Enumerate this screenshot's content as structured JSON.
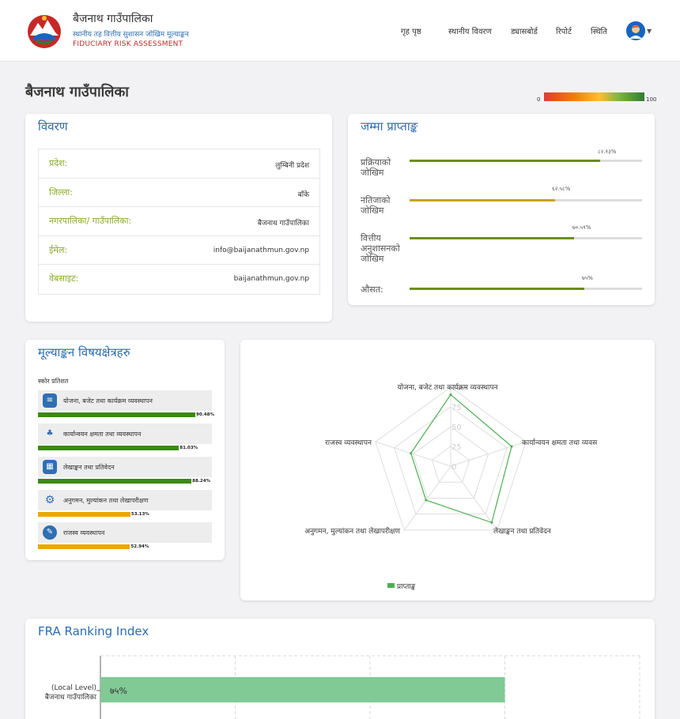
{
  "header": {
    "title": "बैजनाथ गाउँपालिका",
    "subtitle": "स्थानीय तह वित्तीय सुशासन जोखिम मूल्याङ्कन",
    "subtitle_en": "FIDUCIARY RISK ASSESSMENT",
    "nav": [
      "गृह पृष्ठ",
      "स्थानीय विवरण",
      "ड्यासबोर्ड",
      "रिपोर्ट",
      "स्थिति"
    ],
    "avatar_icon": "user-avatar-icon"
  },
  "page_title": "बैजनाथ गाउँपालिका",
  "scale": {
    "min": "0",
    "max": "100"
  },
  "details": {
    "title": "विवरण",
    "rows": [
      {
        "label": "प्रदेश:",
        "value": "लुम्बिनी प्रदेश"
      },
      {
        "label": "जिल्ला:",
        "value": "बाँके"
      },
      {
        "label": "नगरपालिका/ गाउँपालिका:",
        "value": "बैजनाथ गाउँपालिका"
      },
      {
        "label": "ईमेल:",
        "value": "info@baijanathmun.gov.np"
      },
      {
        "label": "वेबसाइट:",
        "value": "baijanathmun.gov.np"
      }
    ]
  },
  "scores": {
    "title": "जम्मा प्राप्ताङ्क",
    "items": [
      {
        "label": "प्रक्रियाको जोखिम",
        "value": 82.13,
        "display": "८२.१३%",
        "color": "#6b8e1a"
      },
      {
        "label": "नतिजाको जोखिम",
        "value": 62.58,
        "display": "६२.५८%",
        "color": "#c8a415"
      },
      {
        "label": "वित्तीय अनुशासनको जोखिम",
        "value": 70.59,
        "display": "७०.५९%",
        "color": "#6b8e1a"
      },
      {
        "label": "औसत:",
        "value": 75,
        "display": "७५%",
        "color": "#6b8e1a"
      }
    ]
  },
  "areas": {
    "title": "मूल्याङ्कन विषयक्षेत्रहरु",
    "subtitle": "स्कोर प्रतिशत",
    "items": [
      {
        "label": "योजना, बजेट तथा कार्यक्रम व्यवस्थापन",
        "value": 90.48,
        "display": "90.48%",
        "color": "#3a8a12",
        "icon": "document-list-icon"
      },
      {
        "label": "कार्यान्वयन क्षमता तथा व्यवस्थापन",
        "value": 81.03,
        "display": "81.03%",
        "color": "#3a8a12",
        "icon": "org-chart-icon"
      },
      {
        "label": "लेखाङ्कन तथा प्रतिवेदन",
        "value": 88.24,
        "display": "88.24%",
        "color": "#3a8a12",
        "icon": "calendar-icon"
      },
      {
        "label": "अनुगमन, मुल्यांकन तथा लेखापरीक्षण",
        "value": 53.13,
        "display": "53.13%",
        "color": "#f0a500",
        "icon": "gear-dollar-icon"
      },
      {
        "label": "राजस्व व्यवस्थापन",
        "value": 52.94,
        "display": "52.94%",
        "color": "#f0a500",
        "icon": "wrench-icon"
      }
    ]
  },
  "chart_data": {
    "type": "radar",
    "categories": [
      "योजना, बजेट तथा कार्यक्रम व्यवस्थापन",
      "कार्यान्वयन क्षमता तथा व्यवस्थापन",
      "लेखाङ्कन तथा प्रतिवेदन",
      "अनुगमन, मुल्यांकन तथा लेखापरीक्षण",
      "राजस्व व्यवस्थापन"
    ],
    "axis_labels": [
      "योजना, बजेट तथा कार्यक्रम व्यवस्थापन",
      "कार्यान्वयन क्षमता तथा व्यवस",
      "लेखाङ्कन तथा प्रतिवेदन",
      "अनुगमन, मुल्यांकन तथा लेखापरीक्षण",
      "राजस्व व्यवस्थापन"
    ],
    "series": [
      {
        "name": "प्राप्ताङ्क",
        "values": [
          90.48,
          81.03,
          88.24,
          53.13,
          52.94
        ],
        "color": "#4caf50"
      }
    ],
    "ticks": [
      "0",
      "25",
      "50",
      "75",
      "100"
    ],
    "range": [
      0,
      100
    ],
    "legend": "bottom"
  },
  "ranking": {
    "title": "FRA Ranking Index",
    "category_line1": "(Local Level)",
    "category_line2": "बैजनाथ गाउँपालिका",
    "value": 75,
    "display": "७५%",
    "xlim": [
      0,
      100
    ]
  }
}
